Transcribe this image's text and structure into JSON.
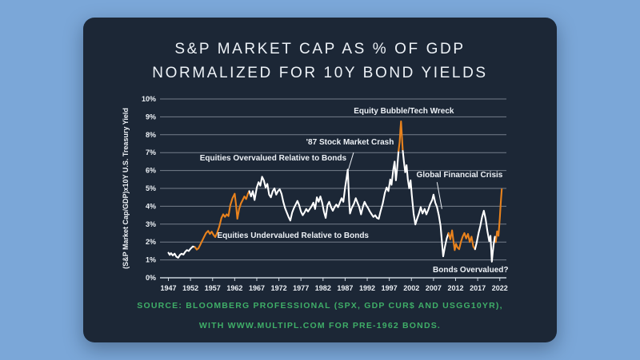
{
  "page": {
    "background": "#7ba7d8",
    "card_background": "#1c2736"
  },
  "title": {
    "line1": "S&P MARKET CAP AS % OF GDP",
    "line2": "NORMALIZED FOR 10Y BOND YIELDS"
  },
  "source": {
    "line1": "SOURCE: BLOOMBERG PROFESSIONAL (SPX, GDP CUR$ AND USGG10YR),",
    "line2": "WITH WWW.MULTIPL.COM FOR PRE-1962 BONDS."
  },
  "chart_data": {
    "type": "line",
    "title": "S&P Market Cap as % of GDP Normalized for 10Y Bond Yields",
    "xlabel": "",
    "ylabel": "(S&P Market Cap/GDP)x10Y U.S. Treasury Yield",
    "xlim": [
      1946,
      2023.5
    ],
    "ylim": [
      0,
      10
    ],
    "grid": true,
    "x_ticks": [
      1947,
      1952,
      1957,
      1962,
      1967,
      1972,
      1977,
      1982,
      1987,
      1992,
      1997,
      2002,
      2007,
      2012,
      2017,
      2022
    ],
    "y_tick_labels": [
      "0%",
      "1%",
      "2%",
      "3%",
      "4%",
      "5%",
      "6%",
      "7%",
      "8%",
      "9%",
      "10%"
    ],
    "line_color": "#ffffff",
    "highlight_color": "#e8821d",
    "colors": {
      "grid": "rgba(205,214,224,0.5)",
      "axis": "rgba(222,230,238,0.9)",
      "text": "#edf1f6"
    },
    "highlight_ranges": [
      [
        1952.9,
        1965.35
      ],
      [
        1998.95,
        2000.15
      ],
      [
        2010.35,
        2016.55
      ],
      [
        2021.15,
        2022.6
      ]
    ],
    "series": [
      {
        "name": "(S&P Market Cap/GDP)x10Y Treasury Yield",
        "points": [
          [
            1947.0,
            1.4
          ],
          [
            1947.3,
            1.28
          ],
          [
            1947.6,
            1.38
          ],
          [
            1948.0,
            1.25
          ],
          [
            1948.4,
            1.35
          ],
          [
            1948.8,
            1.18
          ],
          [
            1949.2,
            1.12
          ],
          [
            1949.6,
            1.28
          ],
          [
            1950.0,
            1.35
          ],
          [
            1950.4,
            1.3
          ],
          [
            1950.8,
            1.45
          ],
          [
            1951.2,
            1.55
          ],
          [
            1951.6,
            1.5
          ],
          [
            1952.0,
            1.62
          ],
          [
            1952.5,
            1.75
          ],
          [
            1953.0,
            1.72
          ],
          [
            1953.4,
            1.58
          ],
          [
            1953.8,
            1.65
          ],
          [
            1954.2,
            1.85
          ],
          [
            1954.6,
            2.05
          ],
          [
            1955.0,
            2.25
          ],
          [
            1955.5,
            2.5
          ],
          [
            1956.0,
            2.62
          ],
          [
            1956.4,
            2.45
          ],
          [
            1956.8,
            2.58
          ],
          [
            1957.2,
            2.4
          ],
          [
            1957.6,
            2.28
          ],
          [
            1958.0,
            2.5
          ],
          [
            1958.5,
            2.85
          ],
          [
            1959.0,
            3.35
          ],
          [
            1959.4,
            3.55
          ],
          [
            1959.8,
            3.4
          ],
          [
            1960.2,
            3.55
          ],
          [
            1960.6,
            3.45
          ],
          [
            1961.0,
            4.05
          ],
          [
            1961.5,
            4.45
          ],
          [
            1962.0,
            4.7
          ],
          [
            1962.3,
            4.1
          ],
          [
            1962.6,
            3.3
          ],
          [
            1963.0,
            3.85
          ],
          [
            1963.4,
            4.15
          ],
          [
            1963.8,
            4.35
          ],
          [
            1964.2,
            4.55
          ],
          [
            1964.6,
            4.4
          ],
          [
            1965.0,
            4.7
          ],
          [
            1965.3,
            4.85
          ],
          [
            1965.7,
            4.55
          ],
          [
            1966.1,
            4.85
          ],
          [
            1966.5,
            4.35
          ],
          [
            1967.0,
            5.05
          ],
          [
            1967.4,
            5.35
          ],
          [
            1967.8,
            5.15
          ],
          [
            1968.2,
            5.65
          ],
          [
            1968.6,
            5.45
          ],
          [
            1969.0,
            5.05
          ],
          [
            1969.4,
            5.25
          ],
          [
            1969.8,
            4.65
          ],
          [
            1970.2,
            4.5
          ],
          [
            1970.6,
            4.85
          ],
          [
            1971.0,
            5.0
          ],
          [
            1971.4,
            4.65
          ],
          [
            1971.8,
            4.85
          ],
          [
            1972.2,
            4.95
          ],
          [
            1972.6,
            4.7
          ],
          [
            1973.0,
            4.25
          ],
          [
            1973.4,
            3.9
          ],
          [
            1973.8,
            3.65
          ],
          [
            1974.2,
            3.4
          ],
          [
            1974.6,
            3.2
          ],
          [
            1975.0,
            3.65
          ],
          [
            1975.4,
            3.9
          ],
          [
            1975.8,
            4.1
          ],
          [
            1976.2,
            4.3
          ],
          [
            1976.6,
            4.05
          ],
          [
            1977.0,
            3.7
          ],
          [
            1977.4,
            3.5
          ],
          [
            1977.8,
            3.65
          ],
          [
            1978.2,
            3.85
          ],
          [
            1978.6,
            3.7
          ],
          [
            1979.0,
            3.85
          ],
          [
            1979.4,
            4.0
          ],
          [
            1979.8,
            4.2
          ],
          [
            1980.2,
            3.85
          ],
          [
            1980.6,
            4.5
          ],
          [
            1981.0,
            4.25
          ],
          [
            1981.4,
            4.55
          ],
          [
            1981.8,
            4.2
          ],
          [
            1982.2,
            3.7
          ],
          [
            1982.6,
            3.35
          ],
          [
            1983.0,
            4.05
          ],
          [
            1983.4,
            4.25
          ],
          [
            1983.8,
            3.95
          ],
          [
            1984.2,
            3.75
          ],
          [
            1984.6,
            3.95
          ],
          [
            1985.0,
            4.1
          ],
          [
            1985.4,
            3.95
          ],
          [
            1985.8,
            4.2
          ],
          [
            1986.2,
            4.45
          ],
          [
            1986.6,
            4.25
          ],
          [
            1987.0,
            5.05
          ],
          [
            1987.4,
            5.7
          ],
          [
            1987.6,
            6.05
          ],
          [
            1987.9,
            4.3
          ],
          [
            1988.1,
            3.6
          ],
          [
            1988.5,
            3.9
          ],
          [
            1989.0,
            4.15
          ],
          [
            1989.4,
            4.45
          ],
          [
            1989.8,
            4.2
          ],
          [
            1990.2,
            3.95
          ],
          [
            1990.6,
            3.55
          ],
          [
            1991.0,
            3.95
          ],
          [
            1991.4,
            4.25
          ],
          [
            1991.8,
            4.05
          ],
          [
            1992.2,
            3.9
          ],
          [
            1992.6,
            3.7
          ],
          [
            1993.0,
            3.55
          ],
          [
            1993.4,
            3.4
          ],
          [
            1993.8,
            3.5
          ],
          [
            1994.2,
            3.35
          ],
          [
            1994.6,
            3.3
          ],
          [
            1995.0,
            3.7
          ],
          [
            1995.5,
            4.15
          ],
          [
            1996.0,
            4.75
          ],
          [
            1996.4,
            5.05
          ],
          [
            1996.8,
            4.85
          ],
          [
            1997.2,
            5.5
          ],
          [
            1997.5,
            5.2
          ],
          [
            1997.9,
            6.05
          ],
          [
            1998.2,
            6.5
          ],
          [
            1998.5,
            5.45
          ],
          [
            1998.8,
            6.2
          ],
          [
            1999.1,
            7.1
          ],
          [
            1999.35,
            7.6
          ],
          [
            1999.5,
            8.3
          ],
          [
            1999.65,
            8.75
          ],
          [
            1999.85,
            7.9
          ],
          [
            2000.05,
            7.1
          ],
          [
            2000.3,
            6.5
          ],
          [
            2000.6,
            5.9
          ],
          [
            2000.9,
            6.3
          ],
          [
            2001.2,
            5.5
          ],
          [
            2001.5,
            5.0
          ],
          [
            2001.8,
            5.45
          ],
          [
            2002.1,
            4.6
          ],
          [
            2002.5,
            3.6
          ],
          [
            2002.9,
            2.98
          ],
          [
            2003.3,
            3.3
          ],
          [
            2003.7,
            3.6
          ],
          [
            2004.1,
            3.95
          ],
          [
            2004.5,
            3.6
          ],
          [
            2005.0,
            3.85
          ],
          [
            2005.4,
            3.55
          ],
          [
            2005.8,
            3.8
          ],
          [
            2006.2,
            4.1
          ],
          [
            2006.7,
            4.35
          ],
          [
            2007.0,
            4.65
          ],
          [
            2007.4,
            4.2
          ],
          [
            2007.8,
            3.95
          ],
          [
            2008.2,
            3.5
          ],
          [
            2008.6,
            2.9
          ],
          [
            2009.0,
            1.75
          ],
          [
            2009.2,
            1.2
          ],
          [
            2009.6,
            1.75
          ],
          [
            2010.0,
            2.2
          ],
          [
            2010.4,
            2.5
          ],
          [
            2010.8,
            2.15
          ],
          [
            2011.2,
            2.65
          ],
          [
            2011.5,
            2.1
          ],
          [
            2011.8,
            1.55
          ],
          [
            2012.1,
            1.9
          ],
          [
            2012.4,
            1.7
          ],
          [
            2012.8,
            1.6
          ],
          [
            2013.2,
            2.0
          ],
          [
            2013.6,
            2.3
          ],
          [
            2014.0,
            2.5
          ],
          [
            2014.4,
            2.2
          ],
          [
            2014.8,
            2.45
          ],
          [
            2015.2,
            2.0
          ],
          [
            2015.6,
            2.3
          ],
          [
            2016.0,
            1.75
          ],
          [
            2016.4,
            1.6
          ],
          [
            2016.8,
            2.0
          ],
          [
            2017.2,
            2.5
          ],
          [
            2017.6,
            2.9
          ],
          [
            2018.0,
            3.4
          ],
          [
            2018.4,
            3.75
          ],
          [
            2018.8,
            3.3
          ],
          [
            2019.2,
            2.6
          ],
          [
            2019.6,
            2.05
          ],
          [
            2019.9,
            2.35
          ],
          [
            2020.2,
            0.9
          ],
          [
            2020.4,
            1.4
          ],
          [
            2020.6,
            1.85
          ],
          [
            2020.9,
            2.3
          ],
          [
            2021.1,
            2.0
          ],
          [
            2021.4,
            2.6
          ],
          [
            2021.7,
            2.35
          ],
          [
            2022.0,
            3.3
          ],
          [
            2022.2,
            4.1
          ],
          [
            2022.45,
            4.95
          ]
        ]
      }
    ],
    "annotations": [
      {
        "text": "Equity Bubble/Tech Wreck",
        "x": 2000.3,
        "y": 9.33
      },
      {
        "text": "'87 Stock Market Crash",
        "x": 1988.1,
        "y": 7.59,
        "leader": [
          1988.9,
          7.0,
          1987.5,
          5.85
        ]
      },
      {
        "text": "Equities Overvalued Relative to Bonds",
        "x": 1970.7,
        "y": 6.7
      },
      {
        "text": "Equities Undervalued Relative to Bonds",
        "x": 1975.2,
        "y": 2.37
      },
      {
        "text": "Global Financial Crisis",
        "x": 2012.9,
        "y": 5.76,
        "leader": [
          2007.8,
          5.35,
          2008.9,
          3.85
        ]
      },
      {
        "text": "Bonds Overvalued?",
        "x": 2015.4,
        "y": 0.45
      }
    ]
  }
}
